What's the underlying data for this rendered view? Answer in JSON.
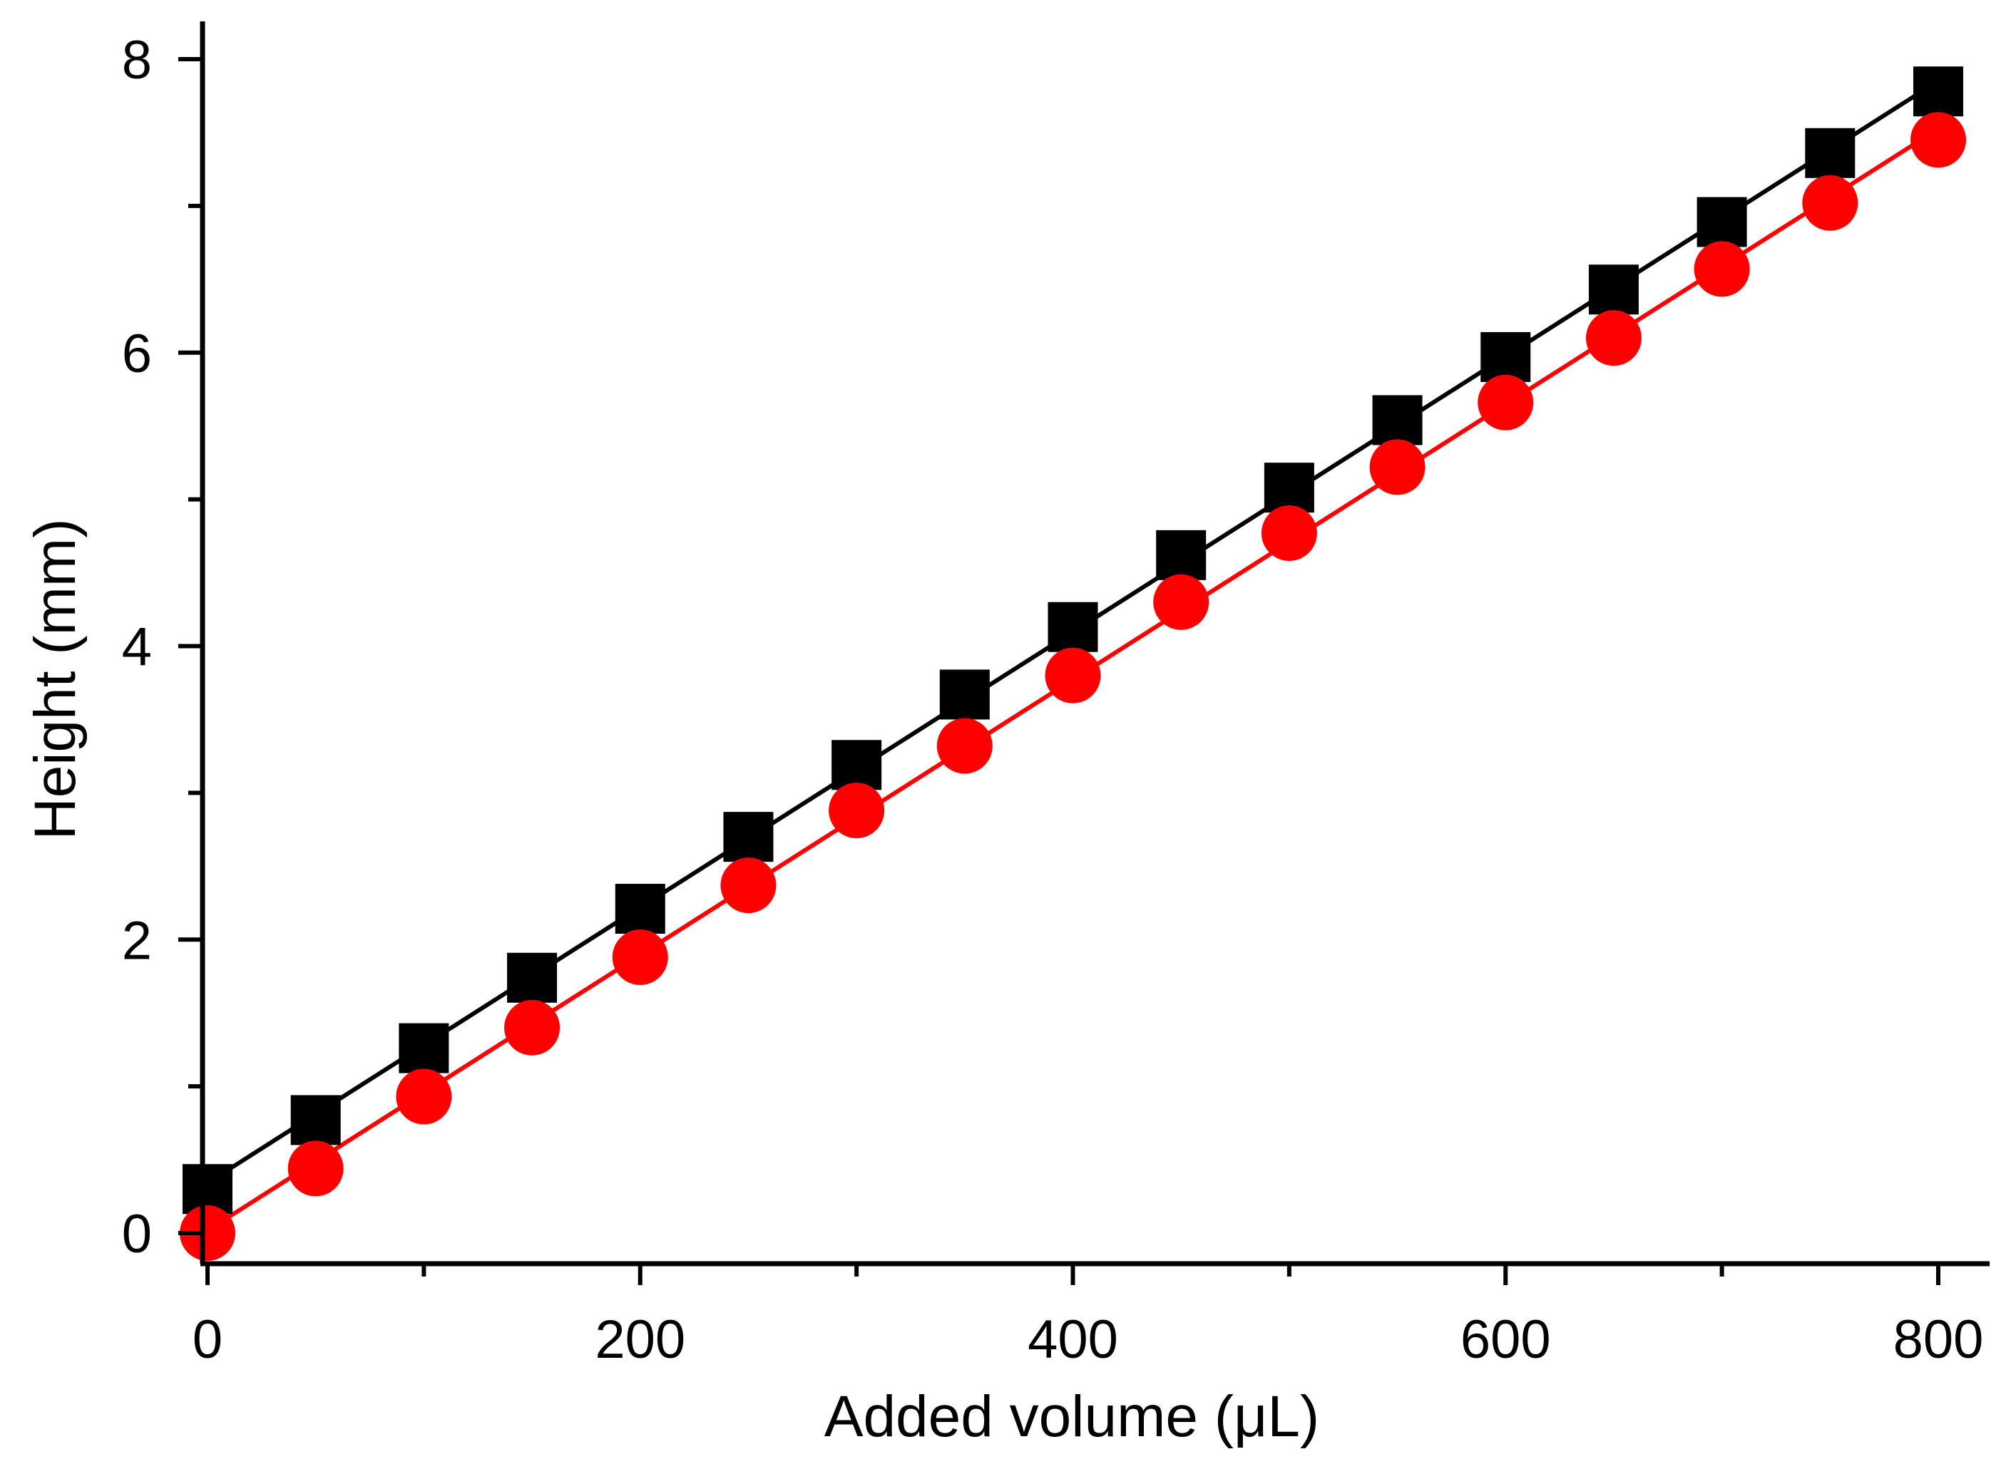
{
  "chart_data": {
    "type": "scatter",
    "title": "",
    "xlabel": "Added volume (μL)",
    "ylabel": "Height (mm)",
    "xlim": [
      0,
      800
    ],
    "ylim": [
      0,
      8
    ],
    "xticks": [
      0,
      200,
      400,
      600,
      800
    ],
    "xtick_labels": [
      "0",
      "200",
      "400",
      "600",
      "800"
    ],
    "yticks": [
      0,
      2,
      4,
      6,
      8
    ],
    "ytick_labels": [
      "0",
      "2",
      "4",
      "6",
      "8"
    ],
    "grid": false,
    "x": [
      0,
      50,
      100,
      150,
      200,
      250,
      300,
      350,
      400,
      450,
      500,
      550,
      600,
      650,
      700,
      750,
      800
    ],
    "series": [
      {
        "marker": "square",
        "color": "#000000",
        "line": "linear-fit",
        "values": [
          0.3,
          0.77,
          1.26,
          1.74,
          2.21,
          2.7,
          3.19,
          3.67,
          4.13,
          4.62,
          5.08,
          5.54,
          5.97,
          6.43,
          6.89,
          7.36,
          7.78
        ]
      },
      {
        "marker": "circle",
        "color": "#ff0000",
        "line": "linear-fit",
        "values": [
          0.0,
          0.44,
          0.93,
          1.4,
          1.88,
          2.37,
          2.88,
          3.32,
          3.8,
          4.3,
          4.77,
          5.22,
          5.66,
          6.1,
          6.57,
          7.02,
          7.45
        ]
      }
    ]
  }
}
